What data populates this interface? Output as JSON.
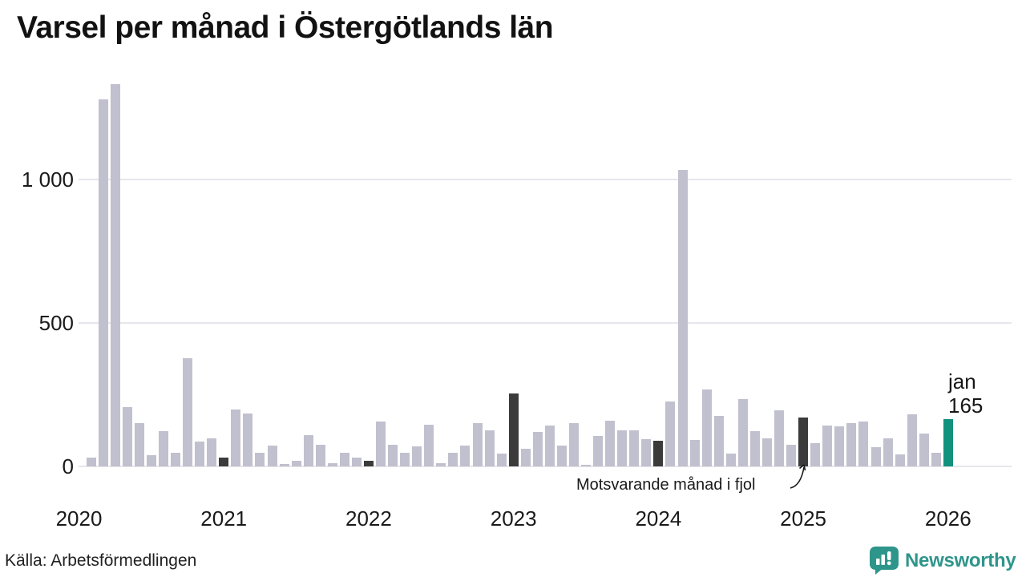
{
  "header": {
    "title": "Varsel per månad i Östergötlands län"
  },
  "annotation": {
    "text": "Motsvarande månad i fjol"
  },
  "end_label": {
    "month": "jan",
    "value": "165"
  },
  "footer": {
    "source": "Källa: Arbetsförmedlingen",
    "brand": "Newsworthy"
  },
  "chart_data": {
    "type": "bar",
    "title": "Varsel per månad i Östergötlands län",
    "xlabel": "",
    "ylabel": "",
    "ylim": [
      0,
      1400
    ],
    "grid": true,
    "y_ticks": [
      {
        "v": 0,
        "label": "0"
      },
      {
        "v": 500,
        "label": "500"
      },
      {
        "v": 1000,
        "label": "1 000"
      }
    ],
    "years": [
      "2020",
      "2021",
      "2022",
      "2023",
      "2024",
      "2025",
      "2026"
    ],
    "colors": {
      "normal": "#c1c0ce",
      "fjol": "#3b3b3b",
      "current": "#12917e",
      "grid": "#e7e6ec",
      "brand": "#2e958b"
    },
    "legend": {
      "fjol_meaning": "Motsvarande månad i fjol",
      "current_label": "jan 165"
    },
    "points": [
      {
        "month": "2020-02",
        "value": 31
      },
      {
        "month": "2020-03",
        "value": 1280
      },
      {
        "month": "2020-04",
        "value": 1335
      },
      {
        "month": "2020-05",
        "value": 207
      },
      {
        "month": "2020-06",
        "value": 152
      },
      {
        "month": "2020-07",
        "value": 40
      },
      {
        "month": "2020-08",
        "value": 122
      },
      {
        "month": "2020-09",
        "value": 47
      },
      {
        "month": "2020-10",
        "value": 378
      },
      {
        "month": "2020-11",
        "value": 86
      },
      {
        "month": "2020-12",
        "value": 99
      },
      {
        "month": "2021-01",
        "value": 30,
        "mark": "fjol"
      },
      {
        "month": "2021-02",
        "value": 199
      },
      {
        "month": "2021-03",
        "value": 186
      },
      {
        "month": "2021-04",
        "value": 49
      },
      {
        "month": "2021-05",
        "value": 73
      },
      {
        "month": "2021-06",
        "value": 8
      },
      {
        "month": "2021-07",
        "value": 20
      },
      {
        "month": "2021-08",
        "value": 110
      },
      {
        "month": "2021-09",
        "value": 76
      },
      {
        "month": "2021-10",
        "value": 12
      },
      {
        "month": "2021-11",
        "value": 48
      },
      {
        "month": "2021-12",
        "value": 32
      },
      {
        "month": "2022-01",
        "value": 20,
        "mark": "fjol"
      },
      {
        "month": "2022-02",
        "value": 158
      },
      {
        "month": "2022-03",
        "value": 77
      },
      {
        "month": "2022-04",
        "value": 49
      },
      {
        "month": "2022-05",
        "value": 69
      },
      {
        "month": "2022-06",
        "value": 146
      },
      {
        "month": "2022-07",
        "value": 10
      },
      {
        "month": "2022-08",
        "value": 48
      },
      {
        "month": "2022-09",
        "value": 73
      },
      {
        "month": "2022-10",
        "value": 152
      },
      {
        "month": "2022-11",
        "value": 127
      },
      {
        "month": "2022-12",
        "value": 45
      },
      {
        "month": "2023-01",
        "value": 255,
        "mark": "fjol"
      },
      {
        "month": "2023-02",
        "value": 63
      },
      {
        "month": "2023-03",
        "value": 119
      },
      {
        "month": "2023-04",
        "value": 144
      },
      {
        "month": "2023-05",
        "value": 74
      },
      {
        "month": "2023-06",
        "value": 151
      },
      {
        "month": "2023-07",
        "value": 6
      },
      {
        "month": "2023-08",
        "value": 107
      },
      {
        "month": "2023-09",
        "value": 160
      },
      {
        "month": "2023-10",
        "value": 127
      },
      {
        "month": "2023-11",
        "value": 127
      },
      {
        "month": "2023-12",
        "value": 95
      },
      {
        "month": "2024-01",
        "value": 90,
        "mark": "fjol"
      },
      {
        "month": "2024-02",
        "value": 227
      },
      {
        "month": "2024-03",
        "value": 1035
      },
      {
        "month": "2024-04",
        "value": 93
      },
      {
        "month": "2024-05",
        "value": 269
      },
      {
        "month": "2024-06",
        "value": 177
      },
      {
        "month": "2024-07",
        "value": 46
      },
      {
        "month": "2024-08",
        "value": 235
      },
      {
        "month": "2024-09",
        "value": 123
      },
      {
        "month": "2024-10",
        "value": 99
      },
      {
        "month": "2024-11",
        "value": 195
      },
      {
        "month": "2024-12",
        "value": 75
      },
      {
        "month": "2025-01",
        "value": 170,
        "mark": "fjol"
      },
      {
        "month": "2025-02",
        "value": 80
      },
      {
        "month": "2025-03",
        "value": 143
      },
      {
        "month": "2025-04",
        "value": 140
      },
      {
        "month": "2025-05",
        "value": 152
      },
      {
        "month": "2025-06",
        "value": 157
      },
      {
        "month": "2025-07",
        "value": 66
      },
      {
        "month": "2025-08",
        "value": 98
      },
      {
        "month": "2025-09",
        "value": 43
      },
      {
        "month": "2025-10",
        "value": 183
      },
      {
        "month": "2025-11",
        "value": 115
      },
      {
        "month": "2025-12",
        "value": 49
      },
      {
        "month": "2026-01",
        "value": 165,
        "mark": "current"
      }
    ]
  }
}
